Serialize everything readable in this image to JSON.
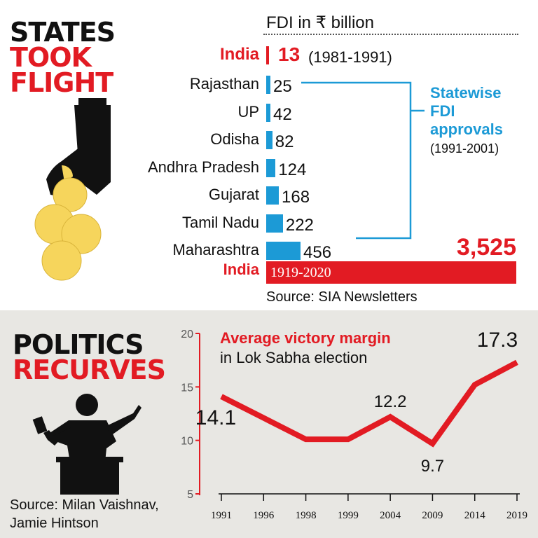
{
  "top": {
    "headline": [
      "STATES",
      "TOOK",
      "FLIGHT"
    ],
    "fdi_title": "FDI in ₹ billion",
    "india_label": "India",
    "india_1981_value": "13",
    "india_1981_period": "(1981-1991)",
    "bracket_title": [
      "Statewise",
      "FDI",
      "approvals"
    ],
    "bracket_period": "(1991-2001)",
    "india_total_value": "3,525",
    "india_total_period": "1919-2020",
    "source": "Source: SIA Newsletters"
  },
  "bottom": {
    "headline": [
      "POLITICS",
      "RECURVES"
    ],
    "chart_title": "Average victory margin",
    "chart_subtitle": "in Lok Sabha election",
    "source": [
      "Source: Milan Vaishnav,",
      "Jamie Hintson"
    ]
  },
  "colors": {
    "red": "#e21b23",
    "blue": "#1c9ad6",
    "black": "#111111",
    "coin": "#f6d55c",
    "bg_bottom": "#e8e7e3"
  },
  "icons": {
    "top": "hand-dropping-coins-icon",
    "bottom": "politician-speaking-icon"
  },
  "chart_data": [
    {
      "type": "bar",
      "orientation": "horizontal",
      "title": "FDI in ₹ billion",
      "categories": [
        "Rajasthan",
        "UP",
        "Odisha",
        "Andhra Pradesh",
        "Gujarat",
        "Tamil Nadu",
        "Maharashtra"
      ],
      "values": [
        25,
        42,
        82,
        124,
        168,
        222,
        456
      ],
      "value_labels": [
        "25",
        "42",
        "82",
        "124",
        "168",
        "222",
        "456"
      ],
      "annotations": [
        {
          "label": "India",
          "value": 13,
          "period": "(1981-1991)"
        },
        {
          "label": "India",
          "value": 3525,
          "period": "1919-2020"
        }
      ],
      "source": "Source: SIA Newsletters"
    },
    {
      "type": "line",
      "title": "Average victory margin",
      "subtitle": "in Lok Sabha election",
      "x": [
        "1991",
        "1996",
        "1998",
        "1999",
        "2004",
        "2009",
        "2014",
        "2019"
      ],
      "y": [
        14.1,
        12.1,
        10.1,
        10.1,
        12.2,
        9.7,
        15.2,
        17.3
      ],
      "point_labels": [
        {
          "index": 0,
          "text": "14.1"
        },
        {
          "index": 4,
          "text": "12.2"
        },
        {
          "index": 5,
          "text": "9.7"
        },
        {
          "index": 7,
          "text": "17.3"
        }
      ],
      "ylim": [
        5,
        20
      ],
      "yticks": [
        "20",
        "15",
        "10",
        "5"
      ],
      "grid": false,
      "color": "#e21b23"
    }
  ]
}
